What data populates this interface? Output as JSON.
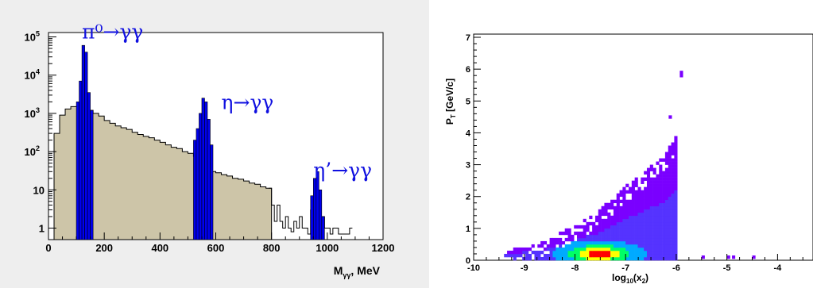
{
  "chart_data": [
    {
      "type": "histogram",
      "scale_y": "log",
      "xlabel_main": "M",
      "xlabel_sub": "γγ",
      "xlabel_unit": ", MeV",
      "xlim": [
        0,
        1200
      ],
      "ylim": [
        0.5,
        130000
      ],
      "xticks": [
        "0",
        "200",
        "400",
        "600",
        "800",
        "1000",
        "1200"
      ],
      "yticks": [
        {
          "v": 1,
          "base": "1",
          "exp": ""
        },
        {
          "v": 10,
          "base": "10",
          "exp": ""
        },
        {
          "v": 100,
          "base": "10",
          "exp": "2"
        },
        {
          "v": 1000,
          "base": "10",
          "exp": "3"
        },
        {
          "v": 10000,
          "base": "10",
          "exp": "4"
        },
        {
          "v": 100000,
          "base": "10",
          "exp": "5"
        }
      ],
      "colors": {
        "background": "#cdc5a8",
        "signal": "#0000ee",
        "frame_bg": "#eeeeee"
      },
      "background": [
        [
          0,
          0.5
        ],
        [
          20,
          300
        ],
        [
          40,
          900
        ],
        [
          60,
          1300
        ],
        [
          80,
          1500
        ],
        [
          100,
          1500
        ],
        [
          120,
          1400
        ],
        [
          140,
          1200
        ],
        [
          160,
          1000
        ],
        [
          180,
          850
        ],
        [
          200,
          650
        ],
        [
          220,
          550
        ],
        [
          240,
          470
        ],
        [
          260,
          420
        ],
        [
          280,
          380
        ],
        [
          300,
          320
        ],
        [
          320,
          280
        ],
        [
          340,
          250
        ],
        [
          360,
          230
        ],
        [
          380,
          200
        ],
        [
          400,
          175
        ],
        [
          420,
          150
        ],
        [
          440,
          130
        ],
        [
          460,
          120
        ],
        [
          480,
          100
        ],
        [
          500,
          90
        ],
        [
          520,
          75
        ],
        [
          540,
          40
        ],
        [
          560,
          35
        ],
        [
          580,
          30
        ],
        [
          600,
          28
        ],
        [
          620,
          25
        ],
        [
          640,
          23
        ],
        [
          660,
          20
        ],
        [
          680,
          19
        ],
        [
          700,
          17
        ],
        [
          720,
          15
        ],
        [
          740,
          14
        ],
        [
          760,
          12
        ],
        [
          780,
          11
        ],
        [
          800,
          0
        ]
      ],
      "outline_tail": [
        [
          790,
          11
        ],
        [
          800,
          4
        ],
        [
          810,
          1.5
        ],
        [
          820,
          4
        ],
        [
          830,
          1.5
        ],
        [
          840,
          1
        ],
        [
          850,
          2
        ],
        [
          860,
          1
        ],
        [
          870,
          0.8
        ],
        [
          880,
          1.5
        ],
        [
          890,
          1
        ],
        [
          900,
          2
        ],
        [
          910,
          1
        ],
        [
          920,
          1
        ],
        [
          930,
          0.7
        ],
        [
          940,
          3
        ],
        [
          950,
          2
        ],
        [
          960,
          1
        ],
        [
          970,
          1
        ],
        [
          980,
          2
        ],
        [
          990,
          1
        ],
        [
          1000,
          1
        ],
        [
          1010,
          0.7
        ],
        [
          1020,
          1
        ],
        [
          1040,
          0.7
        ],
        [
          1080,
          1
        ],
        [
          1090,
          0.7
        ]
      ],
      "signal": [
        [
          100,
          2000
        ],
        [
          110,
          7000
        ],
        [
          120,
          60000
        ],
        [
          130,
          40000
        ],
        [
          140,
          3500
        ],
        [
          150,
          1200
        ],
        [
          520,
          200
        ],
        [
          530,
          400
        ],
        [
          540,
          1000
        ],
        [
          550,
          2500
        ],
        [
          560,
          2000
        ],
        [
          570,
          700
        ],
        [
          580,
          150
        ],
        [
          940,
          7
        ],
        [
          950,
          20
        ],
        [
          960,
          30
        ],
        [
          970,
          10
        ],
        [
          980,
          2
        ]
      ],
      "annotations": [
        {
          "text": "π⁰→γγ",
          "x": 120,
          "y": 90000
        },
        {
          "text": "η→γγ",
          "x": 620,
          "y": 1300
        },
        {
          "text": "η’→γγ",
          "x": 950,
          "y": 22
        }
      ]
    },
    {
      "type": "heatmap",
      "xlabel": "log",
      "xlabel_sub": "10",
      "xlabel_arg": "(x",
      "xlabel_arg_sub": "2",
      "xlabel_close": ")",
      "ylabel_main": "P",
      "ylabel_sub": "T",
      "ylabel_unit": " [GeV/c]",
      "xlim": [
        -10,
        -3.3
      ],
      "ylim": [
        0,
        7.1
      ],
      "xticks": [
        "-10",
        "-9",
        "-8",
        "-7",
        "-6",
        "-5",
        "-4"
      ],
      "yticks": [
        "0",
        "1",
        "2",
        "3",
        "4",
        "5",
        "6",
        "7"
      ],
      "palette": [
        "#7a00ff",
        "#5533ff",
        "#00aaff",
        "#00ff66",
        "#ffff00",
        "#ff0000"
      ],
      "cell": {
        "dx": 0.06,
        "dy": 0.1
      },
      "isolated_points": [
        {
          "x": -5.93,
          "y": 5.85,
          "level": 0
        },
        {
          "x": -5.93,
          "y": 5.75,
          "level": 0
        },
        {
          "x": -6.15,
          "y": 4.45,
          "level": 0
        },
        {
          "x": -5.5,
          "y": 0.05,
          "level": 0
        },
        {
          "x": -5.0,
          "y": 0.05,
          "level": 0
        },
        {
          "x": -4.5,
          "y": 0.05,
          "level": 0
        },
        {
          "x": -4.9,
          "y": 0.05,
          "level": 0
        }
      ]
    }
  ]
}
